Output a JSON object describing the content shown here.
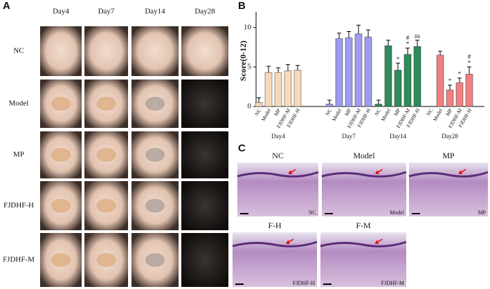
{
  "panel_a": {
    "letter": "A",
    "columns": [
      "Day4",
      "Day7",
      "Day14",
      "Day28"
    ],
    "rows": [
      "NC",
      "Model",
      "MP",
      "FJDHF-H",
      "FJDHF-M"
    ]
  },
  "chart_data": {
    "type": "bar",
    "letter": "B",
    "ylabel": "Score(0-12)",
    "ylim": [
      0,
      12
    ],
    "yticks": [
      0,
      5,
      10
    ],
    "groups": [
      {
        "name": "Day4",
        "color": "#f7d9b8",
        "categories": [
          "NC",
          "Model",
          "MP",
          "FJDHF-M",
          "FJDHF-H"
        ],
        "values": [
          0.5,
          4.3,
          4.3,
          4.5,
          4.6
        ],
        "errors": [
          0.6,
          0.8,
          0.6,
          0.8,
          0.6
        ],
        "annotations": [
          [],
          [],
          [],
          [],
          []
        ]
      },
      {
        "name": "Day7",
        "color": "#9d9cf0",
        "categories": [
          "NC",
          "Model",
          "MP",
          "FJDHF-M",
          "FJDHF-H"
        ],
        "values": [
          0.3,
          8.6,
          8.7,
          9.2,
          8.8
        ],
        "errors": [
          0.5,
          0.7,
          0.8,
          1.1,
          0.9
        ],
        "annotations": [
          [],
          [],
          [],
          [],
          []
        ]
      },
      {
        "name": "Day14",
        "color": "#2e8b5a",
        "categories": [
          "NC",
          "Model",
          "MP",
          "FJDHF-M",
          "FJDHF-H"
        ],
        "values": [
          0.3,
          7.7,
          4.6,
          6.6,
          7.6
        ],
        "errors": [
          0.5,
          0.7,
          0.9,
          0.8,
          0.8
        ],
        "annotations": [
          [],
          [],
          [
            "*"
          ],
          [
            "#",
            "*"
          ],
          [
            "ns"
          ]
        ]
      },
      {
        "name": "Day28",
        "color": "#f08080",
        "categories": [
          "NC",
          "Model",
          "MP",
          "FJDHF-M",
          "FJDHF-H"
        ],
        "values": [
          0,
          6.5,
          2.1,
          3.0,
          4.1
        ],
        "errors": [
          0,
          0.5,
          0.6,
          0.6,
          0.9
        ],
        "annotations": [
          [],
          [],
          [
            "*"
          ],
          [
            "*"
          ],
          [
            "#",
            "*"
          ]
        ]
      }
    ]
  },
  "panel_c": {
    "letter": "C",
    "images": [
      {
        "title": "NC",
        "corner": "NC"
      },
      {
        "title": "Model",
        "corner": "Model"
      },
      {
        "title": "MP",
        "corner": "MP"
      },
      {
        "title": "F-H",
        "corner": "FJDHF-H"
      },
      {
        "title": "F-M",
        "corner": "FJDHF-M"
      }
    ]
  }
}
